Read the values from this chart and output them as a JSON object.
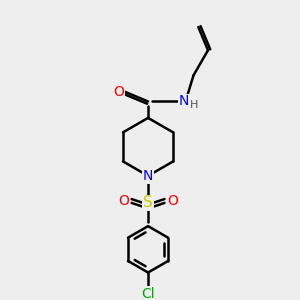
{
  "background_color": "#eeeeee",
  "bond_color": "#000000",
  "atom_colors": {
    "O": "#ff0000",
    "N": "#0000ff",
    "S": "#cccc00",
    "Cl": "#00aa00",
    "H": "#555555",
    "C": "#000000"
  },
  "line_width": 1.8,
  "font_size": 10
}
